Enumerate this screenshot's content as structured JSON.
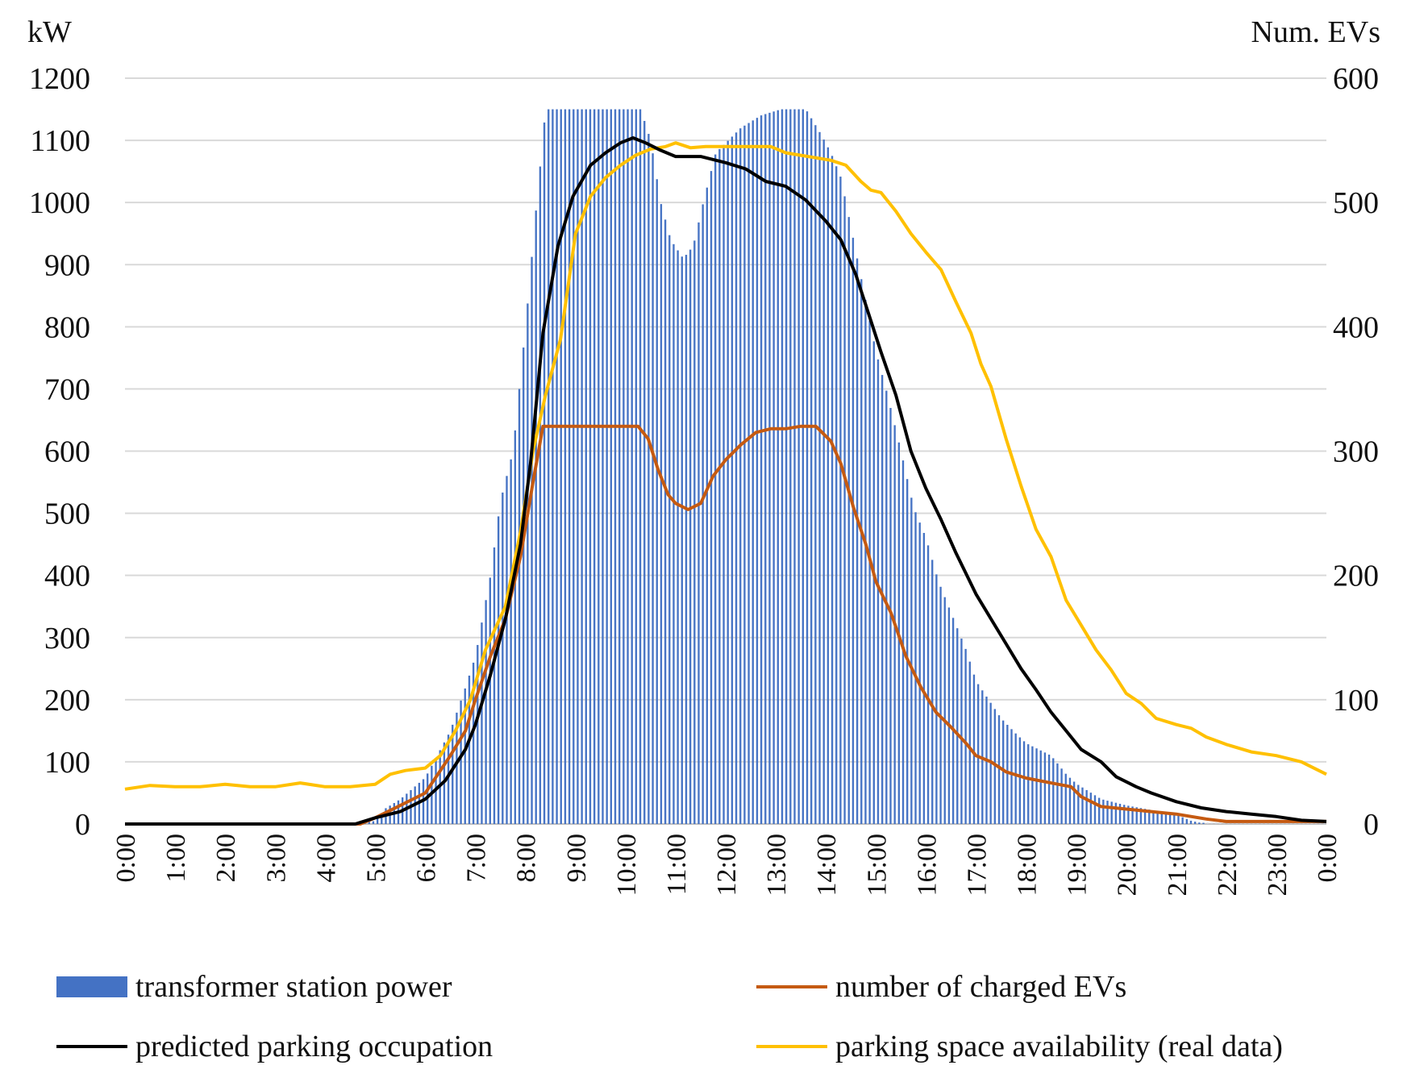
{
  "chart_data": {
    "type": "bar+line",
    "left_axis_label": "kW",
    "right_axis_label": "Num. EVs",
    "left_ylim": [
      0,
      1200
    ],
    "right_ylim": [
      0,
      600
    ],
    "left_ticks": [
      "0",
      "100",
      "200",
      "300",
      "400",
      "500",
      "600",
      "700",
      "800",
      "900",
      "1000",
      "1100",
      "1200"
    ],
    "right_ticks": [
      "0",
      "100",
      "200",
      "300",
      "400",
      "500",
      "600"
    ],
    "x_ticks": [
      "0:00",
      "1:00",
      "2:00",
      "3:00",
      "4:00",
      "5:00",
      "6:00",
      "7:00",
      "8:00",
      "9:00",
      "10:00",
      "11:00",
      "12:00",
      "13:00",
      "14:00",
      "15:00",
      "16:00",
      "17:00",
      "18:00",
      "19:00",
      "20:00",
      "21:00",
      "22:00",
      "23:00",
      "0:00"
    ],
    "x_range_hours": [
      0,
      24
    ],
    "grid": true,
    "legend_position": "bottom",
    "colors": {
      "transformer": "#4472C4",
      "charged": "#C55A11",
      "predicted": "#000000",
      "availability": "#FFC000"
    },
    "series": [
      {
        "name": "transformer station power",
        "kind": "bar",
        "axis": "left",
        "unit": "kW",
        "points": [
          [
            0,
            0
          ],
          [
            4.6,
            0
          ],
          [
            5,
            5
          ],
          [
            5.2,
            25
          ],
          [
            5.5,
            40
          ],
          [
            6,
            75
          ],
          [
            6.5,
            150
          ],
          [
            6.8,
            220
          ],
          [
            7,
            270
          ],
          [
            7.3,
            400
          ],
          [
            7.5,
            520
          ],
          [
            7.75,
            600
          ],
          [
            8,
            800
          ],
          [
            8.2,
            980
          ],
          [
            8.4,
            1150
          ],
          [
            10.3,
            1150
          ],
          [
            10.5,
            1100
          ],
          [
            10.7,
            1000
          ],
          [
            10.9,
            940
          ],
          [
            11.15,
            910
          ],
          [
            11.35,
            930
          ],
          [
            11.55,
            1000
          ],
          [
            11.8,
            1080
          ],
          [
            12.3,
            1120
          ],
          [
            12.7,
            1140
          ],
          [
            13.1,
            1150
          ],
          [
            13.6,
            1150
          ],
          [
            13.9,
            1110
          ],
          [
            14.1,
            1080
          ],
          [
            14.3,
            1040
          ],
          [
            14.5,
            960
          ],
          [
            14.8,
            840
          ],
          [
            15,
            760
          ],
          [
            15.2,
            700
          ],
          [
            15.5,
            600
          ],
          [
            15.75,
            510
          ],
          [
            16,
            460
          ],
          [
            16.25,
            390
          ],
          [
            16.5,
            340
          ],
          [
            16.8,
            280
          ],
          [
            17,
            230
          ],
          [
            17.5,
            170
          ],
          [
            17.8,
            145
          ],
          [
            18,
            130
          ],
          [
            18.5,
            110
          ],
          [
            18.8,
            80
          ],
          [
            19,
            65
          ],
          [
            19.5,
            40
          ],
          [
            20,
            30
          ],
          [
            21,
            15
          ],
          [
            21.3,
            5
          ],
          [
            21.6,
            0
          ],
          [
            24,
            0
          ]
        ]
      },
      {
        "name": "number of charged EVs",
        "kind": "line",
        "axis": "right",
        "unit": "EVs",
        "points": [
          [
            0,
            0
          ],
          [
            4.7,
            0
          ],
          [
            5,
            5
          ],
          [
            5.5,
            15
          ],
          [
            6,
            25
          ],
          [
            6.5,
            55
          ],
          [
            6.8,
            75
          ],
          [
            7,
            100
          ],
          [
            7.3,
            135
          ],
          [
            7.6,
            165
          ],
          [
            7.9,
            215
          ],
          [
            8.15,
            275
          ],
          [
            8.35,
            320
          ],
          [
            10.25,
            320
          ],
          [
            10.45,
            310
          ],
          [
            10.65,
            285
          ],
          [
            10.85,
            265
          ],
          [
            11,
            258
          ],
          [
            11.25,
            253
          ],
          [
            11.5,
            258
          ],
          [
            11.75,
            280
          ],
          [
            12,
            293
          ],
          [
            12.3,
            305
          ],
          [
            12.6,
            315
          ],
          [
            12.9,
            318
          ],
          [
            13.2,
            318
          ],
          [
            13.5,
            320
          ],
          [
            13.8,
            320
          ],
          [
            14.1,
            308
          ],
          [
            14.3,
            290
          ],
          [
            14.55,
            255
          ],
          [
            14.8,
            225
          ],
          [
            15,
            195
          ],
          [
            15.3,
            170
          ],
          [
            15.6,
            135
          ],
          [
            15.9,
            110
          ],
          [
            16.2,
            90
          ],
          [
            16.5,
            78
          ],
          [
            16.8,
            65
          ],
          [
            17,
            55
          ],
          [
            17.3,
            50
          ],
          [
            17.6,
            42
          ],
          [
            18,
            37
          ],
          [
            18.5,
            33
          ],
          [
            18.9,
            30
          ],
          [
            19.1,
            22
          ],
          [
            19.5,
            14
          ],
          [
            20,
            12
          ],
          [
            20.5,
            10
          ],
          [
            21,
            8
          ],
          [
            21.6,
            4
          ],
          [
            22,
            2
          ],
          [
            24,
            2
          ]
        ]
      },
      {
        "name": "predicted parking occupation",
        "kind": "line",
        "axis": "right",
        "unit": "EVs",
        "points": [
          [
            0,
            0
          ],
          [
            4.6,
            0
          ],
          [
            5,
            5
          ],
          [
            5.5,
            10
          ],
          [
            6,
            20
          ],
          [
            6.4,
            35
          ],
          [
            6.8,
            60
          ],
          [
            7,
            80
          ],
          [
            7.3,
            120
          ],
          [
            7.6,
            165
          ],
          [
            7.9,
            225
          ],
          [
            8.1,
            290
          ],
          [
            8.35,
            395
          ],
          [
            8.65,
            465
          ],
          [
            8.95,
            505
          ],
          [
            9.3,
            530
          ],
          [
            9.6,
            540
          ],
          [
            9.9,
            548
          ],
          [
            10.15,
            552
          ],
          [
            10.4,
            548
          ],
          [
            10.7,
            542
          ],
          [
            11,
            537
          ],
          [
            11.5,
            537
          ],
          [
            12,
            532
          ],
          [
            12.4,
            527
          ],
          [
            12.8,
            517
          ],
          [
            13.2,
            513
          ],
          [
            13.6,
            502
          ],
          [
            14,
            485
          ],
          [
            14.3,
            470
          ],
          [
            14.6,
            442
          ],
          [
            14.9,
            405
          ],
          [
            15.1,
            380
          ],
          [
            15.4,
            345
          ],
          [
            15.7,
            300
          ],
          [
            16,
            270
          ],
          [
            16.3,
            245
          ],
          [
            16.6,
            218
          ],
          [
            17,
            185
          ],
          [
            17.3,
            165
          ],
          [
            17.6,
            145
          ],
          [
            17.9,
            125
          ],
          [
            18.2,
            108
          ],
          [
            18.5,
            90
          ],
          [
            18.8,
            75
          ],
          [
            19.1,
            60
          ],
          [
            19.5,
            50
          ],
          [
            19.8,
            38
          ],
          [
            20.2,
            30
          ],
          [
            20.5,
            25
          ],
          [
            21,
            18
          ],
          [
            21.5,
            13
          ],
          [
            22,
            10
          ],
          [
            22.5,
            8
          ],
          [
            23,
            6
          ],
          [
            23.5,
            3
          ],
          [
            24,
            2
          ]
        ]
      },
      {
        "name": "parking space availability (real data)",
        "kind": "line",
        "axis": "right",
        "unit": "EVs",
        "points": [
          [
            0,
            28
          ],
          [
            0.5,
            31
          ],
          [
            1,
            30
          ],
          [
            1.5,
            30
          ],
          [
            2,
            32
          ],
          [
            2.5,
            30
          ],
          [
            3,
            30
          ],
          [
            3.5,
            33
          ],
          [
            4,
            30
          ],
          [
            4.5,
            30
          ],
          [
            5,
            32
          ],
          [
            5.3,
            40
          ],
          [
            5.6,
            43
          ],
          [
            6,
            45
          ],
          [
            6.3,
            55
          ],
          [
            6.6,
            75
          ],
          [
            6.9,
            100
          ],
          [
            7.2,
            140
          ],
          [
            7.6,
            175
          ],
          [
            7.9,
            235
          ],
          [
            8.15,
            300
          ],
          [
            8.4,
            345
          ],
          [
            8.7,
            390
          ],
          [
            9,
            475
          ],
          [
            9.3,
            505
          ],
          [
            9.6,
            520
          ],
          [
            9.9,
            530
          ],
          [
            10.2,
            538
          ],
          [
            10.5,
            543
          ],
          [
            10.8,
            545
          ],
          [
            11,
            548
          ],
          [
            11.3,
            544
          ],
          [
            11.6,
            545
          ],
          [
            12,
            545
          ],
          [
            12.3,
            545
          ],
          [
            12.6,
            545
          ],
          [
            12.9,
            545
          ],
          [
            13.2,
            540
          ],
          [
            13.5,
            538
          ],
          [
            13.8,
            536
          ],
          [
            14.1,
            534
          ],
          [
            14.4,
            530
          ],
          [
            14.7,
            517
          ],
          [
            14.9,
            510
          ],
          [
            15.1,
            508
          ],
          [
            15.4,
            493
          ],
          [
            15.7,
            475
          ],
          [
            16,
            460
          ],
          [
            16.3,
            446
          ],
          [
            16.6,
            420
          ],
          [
            16.9,
            395
          ],
          [
            17.1,
            370
          ],
          [
            17.3,
            352
          ],
          [
            17.6,
            310
          ],
          [
            17.9,
            272
          ],
          [
            18.2,
            237
          ],
          [
            18.5,
            215
          ],
          [
            18.8,
            180
          ],
          [
            19.1,
            160
          ],
          [
            19.4,
            140
          ],
          [
            19.7,
            124
          ],
          [
            20,
            105
          ],
          [
            20.3,
            97
          ],
          [
            20.6,
            85
          ],
          [
            21,
            80
          ],
          [
            21.3,
            77
          ],
          [
            21.6,
            70
          ],
          [
            22,
            64
          ],
          [
            22.5,
            58
          ],
          [
            23,
            55
          ],
          [
            23.5,
            50
          ],
          [
            23.8,
            44
          ],
          [
            24,
            40
          ]
        ]
      }
    ]
  },
  "legend": {
    "transformer": "transformer station power",
    "charged": "number of charged EVs",
    "predicted": "predicted parking occupation",
    "availability": "parking space availability (real data)"
  }
}
